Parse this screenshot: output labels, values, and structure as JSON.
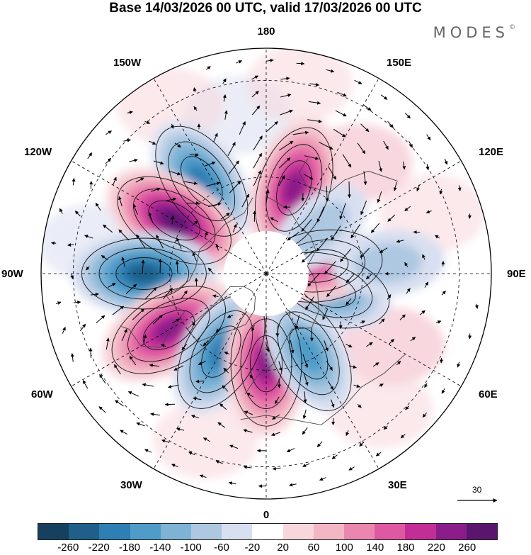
{
  "title": "Base 14/03/2026 00 UTC, valid 17/03/2026 00 UTC",
  "brand": "MODES",
  "brand_mark": "©",
  "meridian_labels": {
    "top": "180",
    "top_left": "150W",
    "top_right": "150E",
    "upper_left": "120W",
    "upper_right": "120E",
    "left": "90W",
    "right": "90E",
    "lower_left": "60W",
    "lower_right": "60E",
    "bottom_left": "30W",
    "bottom_right": "30E",
    "bottom": "0"
  },
  "reference_vector": {
    "value": "30"
  },
  "colorbar": {
    "tick_labels": [
      "-260",
      "-220",
      "-180",
      "-140",
      "-100",
      "-60",
      "-20",
      "20",
      "60",
      "100",
      "140",
      "180",
      "220",
      "260"
    ],
    "colors": [
      "#17405e",
      "#1f5f89",
      "#2e7fb3",
      "#4f9cc9",
      "#7eb3d6",
      "#aec8e2",
      "#d8dff0",
      "#ffffff",
      "#f7d7dc",
      "#f2b6c4",
      "#ea87ae",
      "#df58a2",
      "#c22e96",
      "#8b1d8a",
      "#5a166f"
    ]
  },
  "anomalies": [
    {
      "lon": -145,
      "lat": 55,
      "value": -200
    },
    {
      "lon": 162,
      "lat": 62,
      "value": 240
    },
    {
      "lon": -120,
      "lat": 57,
      "value": 260
    },
    {
      "lon": -90,
      "lat": 52,
      "value": -250
    },
    {
      "lon": -60,
      "lat": 55,
      "value": 250
    },
    {
      "lon": -30,
      "lat": 62,
      "value": -200
    },
    {
      "lon": 0,
      "lat": 62,
      "value": 240
    },
    {
      "lon": 28,
      "lat": 62,
      "value": -150
    },
    {
      "lon": 75,
      "lat": 70,
      "value": -160
    },
    {
      "lon": 98,
      "lat": 73,
      "value": 140
    },
    {
      "lon": 95,
      "lat": 52,
      "value": -90
    },
    {
      "lon": 130,
      "lat": 68,
      "value": -70
    }
  ]
}
